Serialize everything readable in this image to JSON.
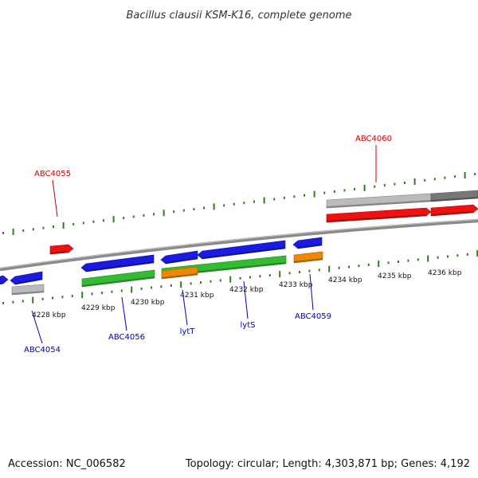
{
  "title": "Bacillus clausii KSM-K16, complete genome",
  "footer": {
    "accession": "Accession: NC_006582",
    "summary": "Topology: circular; Length: 4,303,871 bp; Genes: 4,192"
  },
  "colors": {
    "backbone": "#8a8a8a",
    "tick": "#2e7d1e",
    "cds_forward": "#ee1111",
    "cds_reverse": "#1a1ae0",
    "gene_green": "#33bb33",
    "gene_orange": "#ee8800",
    "gene_grey_light": "#bbbbbb",
    "gene_grey_dark": "#777777",
    "label_forward": "#cc0000",
    "label_reverse": "#0000bb"
  },
  "scale": {
    "unit": "kbp",
    "tick_labels": [
      "4228 kbp",
      "4229 kbp",
      "4230 kbp",
      "4231 kbp",
      "4232 kbp",
      "4233 kbp",
      "4234 kbp",
      "4235 kbp",
      "4236 kbp"
    ]
  },
  "gene_labels": [
    {
      "text": "ABC4055",
      "strand": "forward"
    },
    {
      "text": "ABC4060",
      "strand": "forward"
    },
    {
      "text": "ABC4054",
      "strand": "reverse"
    },
    {
      "text": "ABC4056",
      "strand": "reverse"
    },
    {
      "text": "lytT",
      "strand": "reverse"
    },
    {
      "text": "lytS",
      "strand": "reverse"
    },
    {
      "text": "ABC4059",
      "strand": "reverse"
    }
  ]
}
